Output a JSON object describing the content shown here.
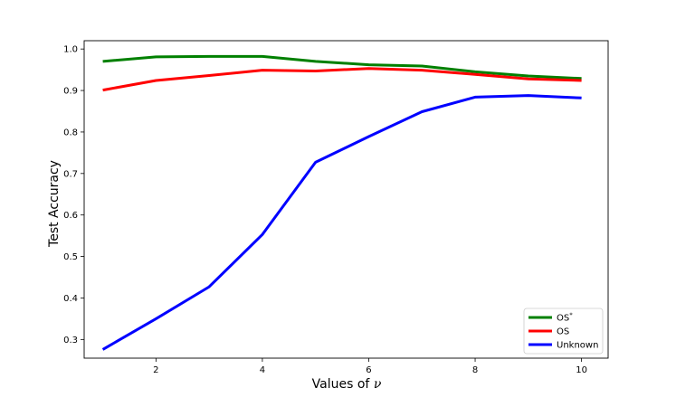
{
  "chart_data": {
    "type": "line",
    "xlabel_prefix": "Values of ",
    "xlabel_symbol": "ν",
    "ylabel": "Test Accuracy",
    "xlim": [
      0.65,
      10.5
    ],
    "ylim": [
      0.255,
      1.02
    ],
    "xticks": [
      2,
      4,
      6,
      8,
      10
    ],
    "yticks": [
      0.3,
      0.4,
      0.5,
      0.6,
      0.7,
      0.8,
      0.9,
      1.0
    ],
    "ytick_labels": [
      "0.3",
      "0.4",
      "0.5",
      "0.6",
      "0.7",
      "0.8",
      "0.9",
      "1.0"
    ],
    "legend_position": "lower-right",
    "grid": false,
    "x": [
      1,
      2,
      3,
      4,
      5,
      6,
      7,
      8,
      9,
      10
    ],
    "series": [
      {
        "name": "OS",
        "name_sup": "*",
        "color": "#008000",
        "values": [
          0.97,
          0.981,
          0.982,
          0.982,
          0.97,
          0.962,
          0.959,
          0.945,
          0.935,
          0.929
        ]
      },
      {
        "name": "OS",
        "name_sup": "",
        "color": "#ff0000",
        "values": [
          0.901,
          0.924,
          0.936,
          0.949,
          0.947,
          0.953,
          0.949,
          0.939,
          0.928,
          0.924
        ]
      },
      {
        "name": "Unknown",
        "name_sup": "",
        "color": "#0000ff",
        "values": [
          0.276,
          0.35,
          0.427,
          0.553,
          0.727,
          0.789,
          0.849,
          0.884,
          0.888,
          0.882
        ]
      }
    ]
  }
}
